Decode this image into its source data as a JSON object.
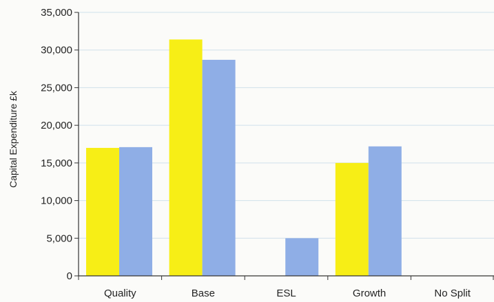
{
  "chart_data": {
    "type": "bar",
    "title": "",
    "xlabel": "",
    "ylabel": "Capital Expenditure £k",
    "categories": [
      "Quality",
      "Base",
      "ESL",
      "Growth",
      "No Split"
    ],
    "series": [
      {
        "color": "#f7ee16",
        "values": [
          17000,
          31400,
          0,
          15000,
          0
        ]
      },
      {
        "color": "#8faee6",
        "values": [
          17100,
          28700,
          5000,
          17200,
          0
        ]
      }
    ],
    "ylim": [
      0,
      35000
    ],
    "yticks": [
      0,
      5000,
      10000,
      15000,
      20000,
      25000,
      30000,
      35000
    ],
    "ytick_labels": [
      "0",
      "5,000",
      "10,000",
      "15,000",
      "20,000",
      "25,000",
      "30,000",
      "35,000"
    ],
    "grid": true,
    "legend": "none"
  }
}
